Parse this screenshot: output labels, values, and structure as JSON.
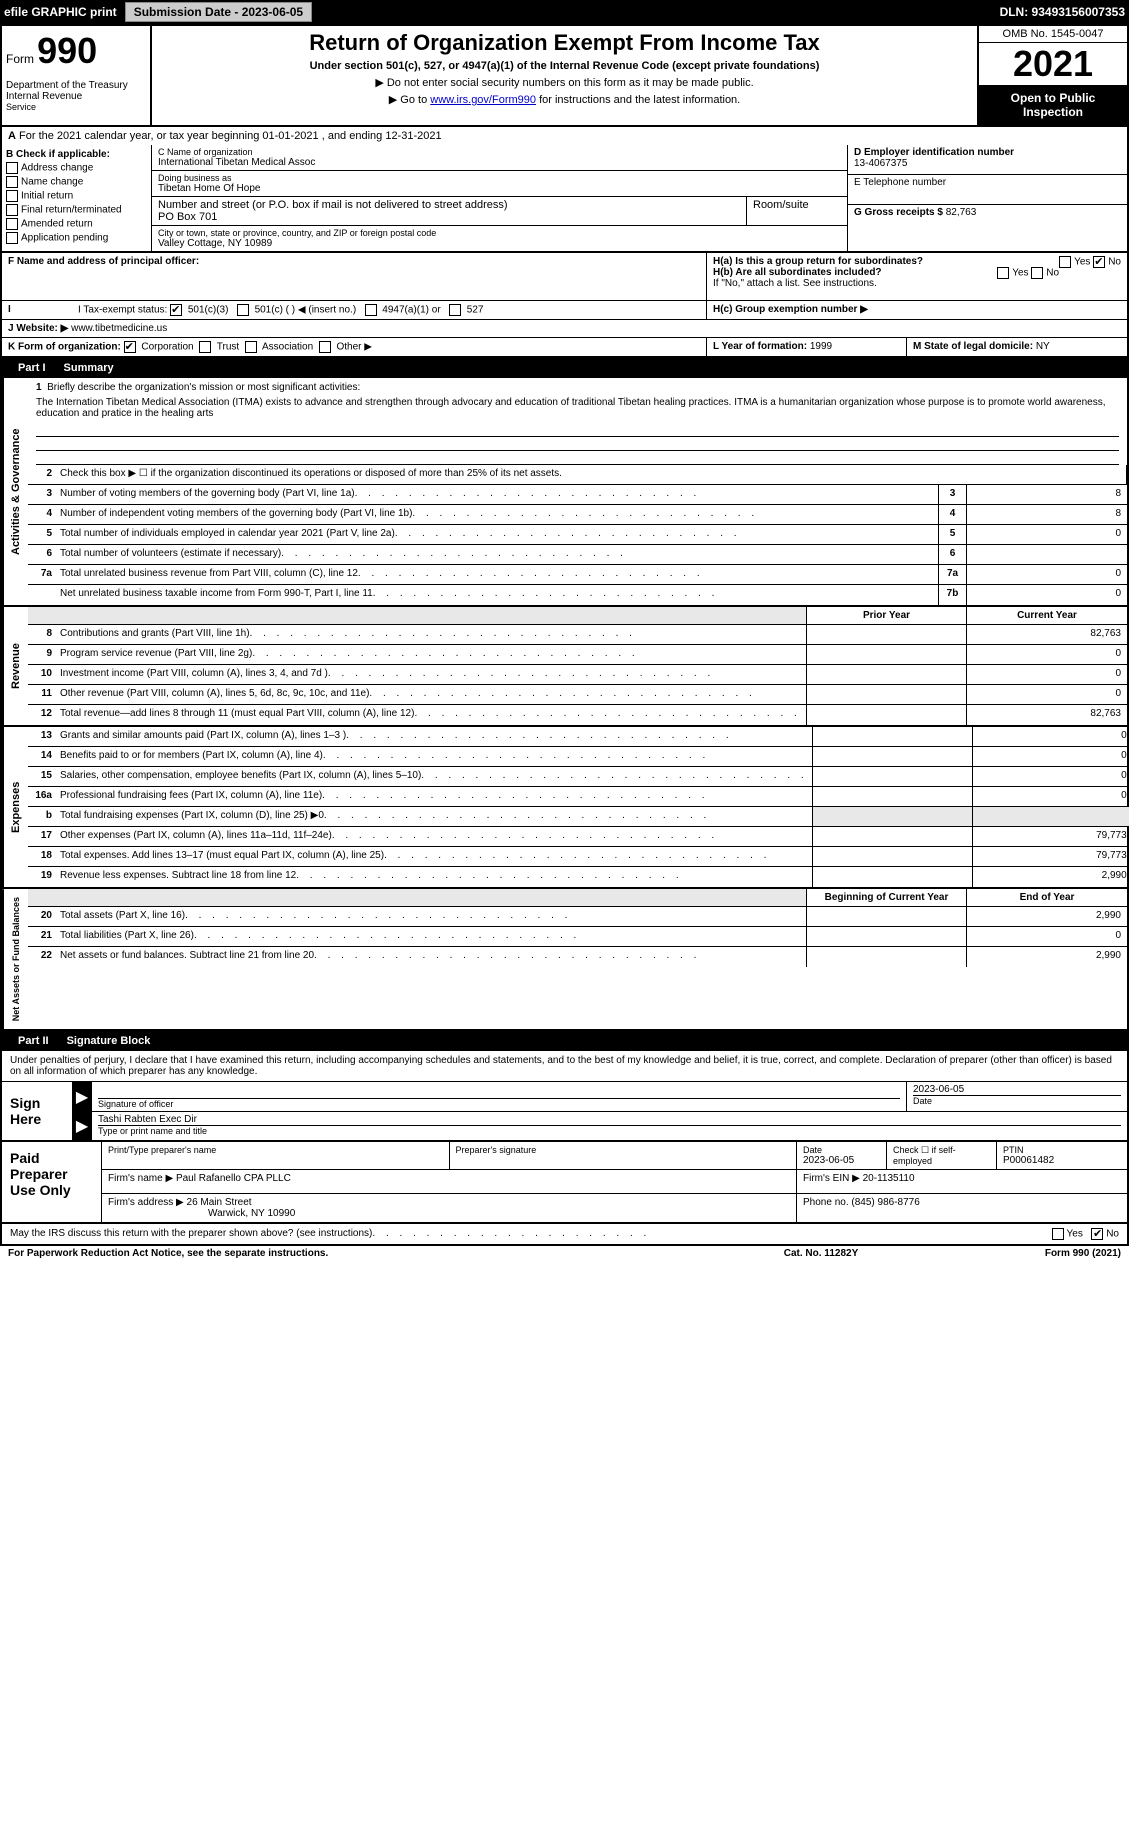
{
  "top_bar": {
    "efile_label": "efile GRAPHIC print",
    "submission_label": "Submission Date - 2023-06-05",
    "dln_label": "DLN: 93493156007353"
  },
  "header": {
    "form_word": "Form",
    "form_num": "990",
    "dept": "Department of the Treasury Internal Revenue",
    "title": "Return of Organization Exempt From Income Tax",
    "subtitle": "Under section 501(c), 527, or 4947(a)(1) of the Internal Revenue Code (except private foundations)",
    "arrow1": "▶ Do not enter social security numbers on this form as it may be made public.",
    "arrow2_prefix": "▶ Go to ",
    "arrow2_link": "www.irs.gov/Form990",
    "arrow2_suffix": " for instructions and the latest information.",
    "omb": "OMB No. 1545-0047",
    "year": "2021",
    "open": "Open to Public Inspection"
  },
  "cal_year": "For the 2021 calendar year, or tax year beginning 01-01-2021    , and ending 12-31-2021",
  "section_b": {
    "title": "B Check if applicable:",
    "items": [
      "Address change",
      "Name change",
      "Initial return",
      "Final return/terminated",
      "Amended return",
      "Application pending"
    ]
  },
  "section_c": {
    "name_label": "C Name of organization",
    "name": "International Tibetan Medical Assoc",
    "dba_label": "Doing business as",
    "dba": "Tibetan Home Of Hope",
    "street_label": "Number and street (or P.O. box if mail is not delivered to street address)",
    "room_label": "Room/suite",
    "street": "PO Box 701",
    "city_label": "City or town, state or province, country, and ZIP or foreign postal code",
    "city": "Valley Cottage, NY  10989"
  },
  "section_d": {
    "ein_label": "D Employer identification number",
    "ein": "13-4067375",
    "phone_label": "E Telephone number",
    "gross_label": "G Gross receipts $",
    "gross": "82,763"
  },
  "section_f": {
    "label": "F  Name and address of principal officer:"
  },
  "section_h": {
    "ha": "H(a)  Is this a group return for subordinates?",
    "hb": "H(b)  Are all subordinates included?",
    "hb_note": "If \"No,\" attach a list. See instructions.",
    "hc": "H(c)  Group exemption number ▶",
    "yes": "Yes",
    "no": "No"
  },
  "section_i": {
    "label": "I  Tax-exempt status:",
    "opt1": "501(c)(3)",
    "opt2": "501(c) (  ) ◀ (insert no.)",
    "opt3": "4947(a)(1) or",
    "opt4": "527"
  },
  "section_j": {
    "label": "J  Website: ▶",
    "url": "www.tibetmedicine.us"
  },
  "section_k": {
    "label": "K Form of organization:",
    "opts": [
      "Corporation",
      "Trust",
      "Association",
      "Other ▶"
    ]
  },
  "section_l": {
    "label": "L Year of formation:",
    "val": "1999"
  },
  "section_m": {
    "label": "M State of legal domicile:",
    "val": "NY"
  },
  "part1": {
    "label": "Part I",
    "title": "Summary"
  },
  "mission": {
    "num": "1",
    "label": "Briefly describe the organization's mission or most significant activities:",
    "text": "The Internation Tibetan Medical Association (ITMA) exists to advance and strengthen through advocary and education of traditional Tibetan healing practices. ITMA is a humanitarian organization whose purpose is to promote world awareness, education and pratice in the healing arts"
  },
  "gov_lines": [
    {
      "num": "2",
      "desc": "Check this box ▶ ☐  if the organization discontinued its operations or disposed of more than 25% of its net assets.",
      "box": "",
      "val": ""
    },
    {
      "num": "3",
      "desc": "Number of voting members of the governing body (Part VI, line 1a)",
      "box": "3",
      "val": "8"
    },
    {
      "num": "4",
      "desc": "Number of independent voting members of the governing body (Part VI, line 1b)",
      "box": "4",
      "val": "8"
    },
    {
      "num": "5",
      "desc": "Total number of individuals employed in calendar year 2021 (Part V, line 2a)",
      "box": "5",
      "val": "0"
    },
    {
      "num": "6",
      "desc": "Total number of volunteers (estimate if necessary)",
      "box": "6",
      "val": ""
    },
    {
      "num": "7a",
      "desc": "Total unrelated business revenue from Part VIII, column (C), line 12",
      "box": "7a",
      "val": "0"
    },
    {
      "num": "",
      "desc": "Net unrelated business taxable income from Form 990-T, Part I, line 11",
      "box": "7b",
      "val": "0"
    }
  ],
  "col_headers": {
    "prior": "Prior Year",
    "current": "Current Year"
  },
  "rev_lines": [
    {
      "num": "8",
      "desc": "Contributions and grants (Part VIII, line 1h)",
      "prior": "",
      "current": "82,763"
    },
    {
      "num": "9",
      "desc": "Program service revenue (Part VIII, line 2g)",
      "prior": "",
      "current": "0"
    },
    {
      "num": "10",
      "desc": "Investment income (Part VIII, column (A), lines 3, 4, and 7d )",
      "prior": "",
      "current": "0"
    },
    {
      "num": "11",
      "desc": "Other revenue (Part VIII, column (A), lines 5, 6d, 8c, 9c, 10c, and 11e)",
      "prior": "",
      "current": "0"
    },
    {
      "num": "12",
      "desc": "Total revenue—add lines 8 through 11 (must equal Part VIII, column (A), line 12)",
      "prior": "",
      "current": "82,763"
    }
  ],
  "exp_lines": [
    {
      "num": "13",
      "desc": "Grants and similar amounts paid (Part IX, column (A), lines 1–3 )",
      "prior": "",
      "current": "0"
    },
    {
      "num": "14",
      "desc": "Benefits paid to or for members (Part IX, column (A), line 4)",
      "prior": "",
      "current": "0"
    },
    {
      "num": "15",
      "desc": "Salaries, other compensation, employee benefits (Part IX, column (A), lines 5–10)",
      "prior": "",
      "current": "0"
    },
    {
      "num": "16a",
      "desc": "Professional fundraising fees (Part IX, column (A), line 11e)",
      "prior": "",
      "current": "0"
    },
    {
      "num": "b",
      "desc": "Total fundraising expenses (Part IX, column (D), line 25) ▶0",
      "prior": "gray",
      "current": "gray"
    },
    {
      "num": "17",
      "desc": "Other expenses (Part IX, column (A), lines 11a–11d, 11f–24e)",
      "prior": "",
      "current": "79,773"
    },
    {
      "num": "18",
      "desc": "Total expenses. Add lines 13–17 (must equal Part IX, column (A), line 25)",
      "prior": "",
      "current": "79,773"
    },
    {
      "num": "19",
      "desc": "Revenue less expenses. Subtract line 18 from line 12",
      "prior": "",
      "current": "2,990"
    }
  ],
  "net_headers": {
    "begin": "Beginning of Current Year",
    "end": "End of Year"
  },
  "net_lines": [
    {
      "num": "20",
      "desc": "Total assets (Part X, line 16)",
      "prior": "",
      "current": "2,990"
    },
    {
      "num": "21",
      "desc": "Total liabilities (Part X, line 26)",
      "prior": "",
      "current": "0"
    },
    {
      "num": "22",
      "desc": "Net assets or fund balances. Subtract line 21 from line 20",
      "prior": "",
      "current": "2,990"
    }
  ],
  "side_labels": {
    "gov": "Activities & Governance",
    "rev": "Revenue",
    "exp": "Expenses",
    "net": "Net Assets or Fund Balances"
  },
  "part2": {
    "label": "Part II",
    "title": "Signature Block"
  },
  "sig": {
    "declaration": "Under penalties of perjury, I declare that I have examined this return, including accompanying schedules and statements, and to the best of my knowledge and belief, it is true, correct, and complete. Declaration of preparer (other than officer) is based on all information of which preparer has any knowledge.",
    "sign_here": "Sign Here",
    "sig_officer": "Signature of officer",
    "date": "Date",
    "sig_date": "2023-06-05",
    "name": "Tashi Rabten  Exec Dir",
    "name_label": "Type or print name and title"
  },
  "paid": {
    "label": "Paid Preparer Use Only",
    "print_name_label": "Print/Type preparer's name",
    "prep_sig_label": "Preparer's signature",
    "date_label": "Date",
    "date": "2023-06-05",
    "check_label": "Check ☐ if self-employed",
    "ptin_label": "PTIN",
    "ptin": "P00061482",
    "firm_name_label": "Firm's name    ▶",
    "firm_name": "Paul Rafanello CPA PLLC",
    "firm_ein_label": "Firm's EIN ▶",
    "firm_ein": "20-1135110",
    "firm_addr_label": "Firm's address ▶",
    "firm_addr1": "26 Main Street",
    "firm_addr2": "Warwick, NY  10990",
    "phone_label": "Phone no.",
    "phone": "(845) 986-8776"
  },
  "discuss": {
    "text": "May the IRS discuss this return with the preparer shown above? (see instructions)",
    "yes": "Yes",
    "no": "No"
  },
  "footer": {
    "left": "For Paperwork Reduction Act Notice, see the separate instructions.",
    "center": "Cat. No. 11282Y",
    "right": "Form 990 (2021)"
  },
  "service_label": "Service"
}
